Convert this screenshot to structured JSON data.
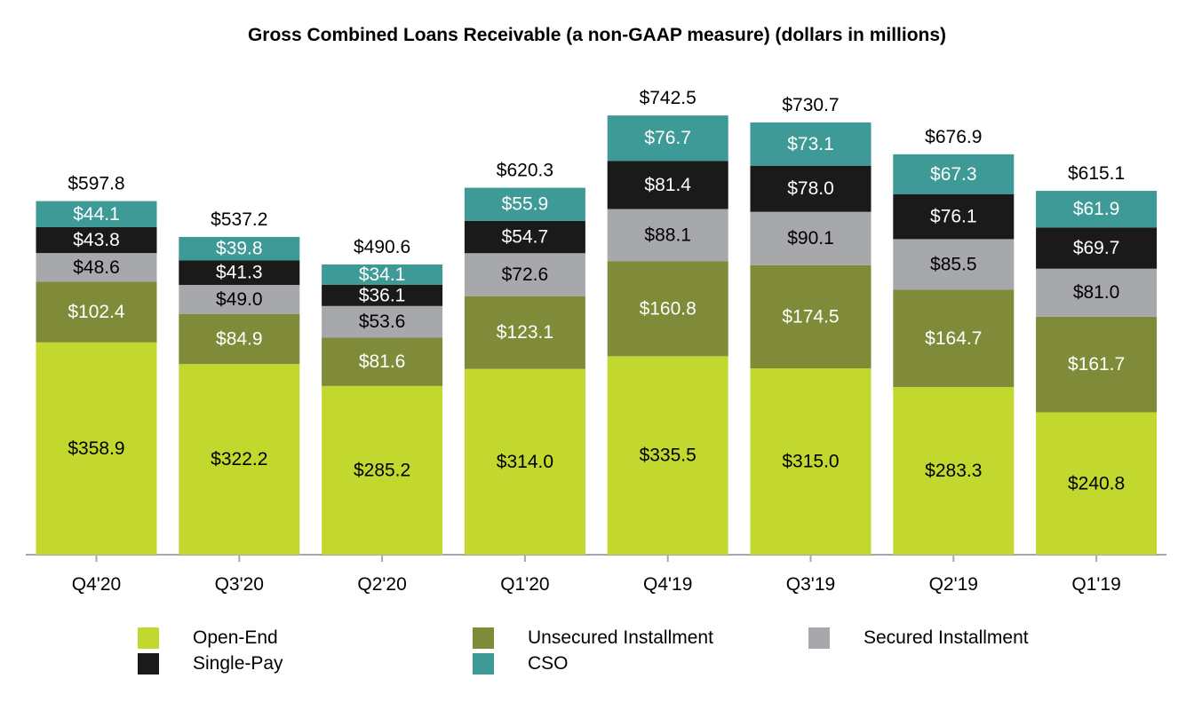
{
  "chart_data": {
    "type": "bar",
    "stacked": true,
    "title": "Gross Combined Loans Receivable (a non-GAAP measure) (dollars in millions)",
    "xlabel": "",
    "ylabel": "",
    "ylim": [
      0,
      760
    ],
    "grid": false,
    "legend_position": "bottom",
    "categories": [
      "Q4'20",
      "Q3'20",
      "Q2'20",
      "Q1'20",
      "Q4'19",
      "Q3'19",
      "Q2'19",
      "Q1'19"
    ],
    "totals": [
      597.8,
      537.2,
      490.6,
      620.3,
      742.5,
      730.7,
      676.9,
      615.1
    ],
    "total_labels": [
      "$597.8",
      "$537.2",
      "$490.6",
      "$620.3",
      "$742.5",
      "$730.7",
      "$676.9",
      "$615.1"
    ],
    "series": [
      {
        "name": "Open-End",
        "color": "#c3d82e",
        "label_color": "#000000",
        "values": [
          358.9,
          322.2,
          285.2,
          314.0,
          335.5,
          315.0,
          283.3,
          240.8
        ],
        "labels": [
          "$358.9",
          "$322.2",
          "$285.2",
          "$314.0",
          "$335.5",
          "$315.0",
          "$283.3",
          "$240.8"
        ]
      },
      {
        "name": "Unsecured Installment",
        "color": "#7f8b38",
        "label_color": "#ffffff",
        "values": [
          102.4,
          84.9,
          81.6,
          123.1,
          160.8,
          174.5,
          164.7,
          161.7
        ],
        "labels": [
          "$102.4",
          "$84.9",
          "$81.6",
          "$123.1",
          "$160.8",
          "$174.5",
          "$164.7",
          "$161.7"
        ]
      },
      {
        "name": "Secured Installment",
        "color": "#a6a8ab",
        "label_color": "#000000",
        "values": [
          48.6,
          49.0,
          53.6,
          72.6,
          88.1,
          90.1,
          85.5,
          81.0
        ],
        "labels": [
          "$48.6",
          "$49.0",
          "$53.6",
          "$72.6",
          "$88.1",
          "$90.1",
          "$85.5",
          "$81.0"
        ]
      },
      {
        "name": "Single-Pay",
        "color": "#1a1a1a",
        "label_color": "#ffffff",
        "values": [
          43.8,
          41.3,
          36.1,
          54.7,
          81.4,
          78.0,
          76.1,
          69.7
        ],
        "labels": [
          "$43.8",
          "$41.3",
          "$36.1",
          "$54.7",
          "$81.4",
          "$78.0",
          "$76.1",
          "$69.7"
        ]
      },
      {
        "name": "CSO",
        "color": "#3d9a96",
        "label_color": "#ffffff",
        "values": [
          44.1,
          39.8,
          34.1,
          55.9,
          76.7,
          73.1,
          67.3,
          61.9
        ],
        "labels": [
          "$44.1",
          "$39.8",
          "$34.1",
          "$55.9",
          "$76.7",
          "$73.1",
          "$67.3",
          "$61.9"
        ]
      }
    ],
    "legend": [
      {
        "label": "Open-End",
        "color": "#c3d82e"
      },
      {
        "label": "Unsecured Installment",
        "color": "#7f8b38"
      },
      {
        "label": "Secured Installment",
        "color": "#a6a8ab"
      },
      {
        "label": "Single-Pay",
        "color": "#1a1a1a"
      },
      {
        "label": "CSO",
        "color": "#3d9a96"
      }
    ],
    "axis_color": "#a6a8ab"
  }
}
